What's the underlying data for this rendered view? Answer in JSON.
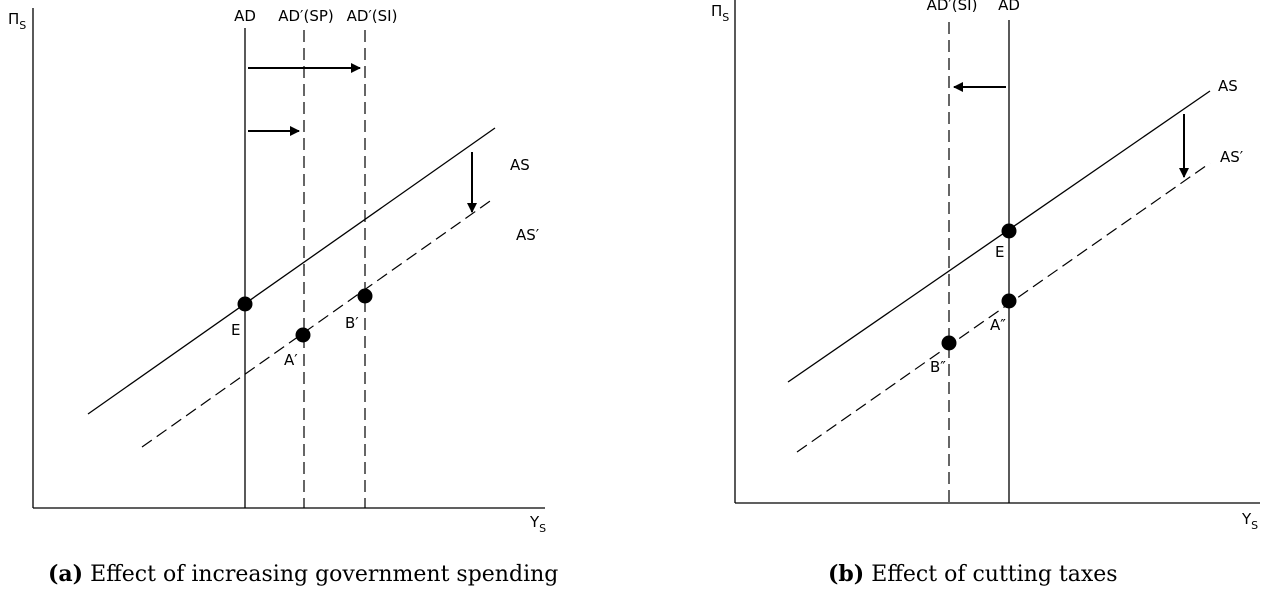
{
  "panel_a": {
    "y_axis_label": "Π",
    "y_axis_sub": "S",
    "x_axis_label": "Y",
    "x_axis_sub": "S",
    "curves": {
      "ad": "AD",
      "ad_sp": "AD′(SP)",
      "ad_si": "AD′(SI)",
      "as": "AS",
      "as_prime": "AS′"
    },
    "points": {
      "e": "E",
      "a_prime": "A′",
      "b_prime": "B′"
    },
    "caption_tag": "(a)",
    "caption_text": "Effect of increasing government spending"
  },
  "panel_b": {
    "y_axis_label": "Π",
    "y_axis_sub": "S",
    "x_axis_label": "Y",
    "x_axis_sub": "S",
    "curves": {
      "ad": "AD",
      "ad_si": "AD′(SI)",
      "as": "AS",
      "as_prime": "AS′"
    },
    "points": {
      "e": "E",
      "a_dprime": "A″",
      "b_dprime": "B″"
    },
    "caption_tag": "(b)",
    "caption_text": "Effect of cutting taxes"
  }
}
